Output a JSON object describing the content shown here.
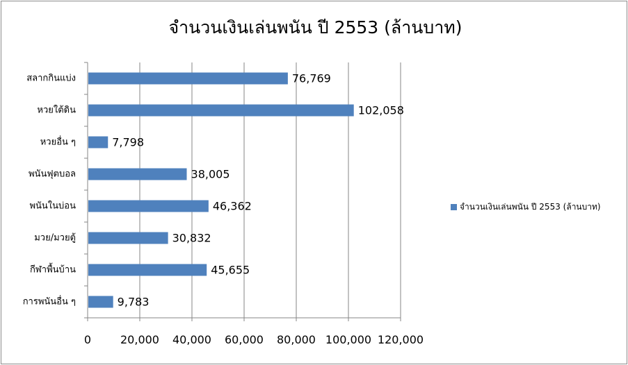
{
  "chart_data": {
    "type": "bar",
    "orientation": "horizontal",
    "title": "จำนวนเงินเล่นพนัน ปี 2553 (ล้านบาท)",
    "categories": [
      "สลากกินแบ่ง",
      "หวยใต้ดิน",
      "หวยอื่น ๆ",
      "พนันฟุตบอล",
      "พนันในบ่อน",
      "มวย/มวยตู้",
      "กีฬาพื้นบ้าน",
      "การพนันอื่น ๆ"
    ],
    "series": [
      {
        "name": "จำนวนเงินเล่นพนัน ปี 2553 (ล้านบาท)",
        "values": [
          76769,
          102058,
          7798,
          38005,
          46362,
          30832,
          45655,
          9783
        ],
        "labels": [
          "76,769",
          "102,058",
          "7,798",
          "38,005",
          "46,362",
          "30,832",
          "45,655",
          "9,783"
        ],
        "color": "#4f81bd"
      }
    ],
    "xlim": [
      0,
      120000
    ],
    "xticks": [
      0,
      20000,
      40000,
      60000,
      80000,
      100000,
      120000
    ],
    "xtick_labels": [
      "0",
      "20,000",
      "40,000",
      "60,000",
      "80,000",
      "100,000",
      "120,000"
    ],
    "grid": true,
    "legend_position": "right"
  }
}
